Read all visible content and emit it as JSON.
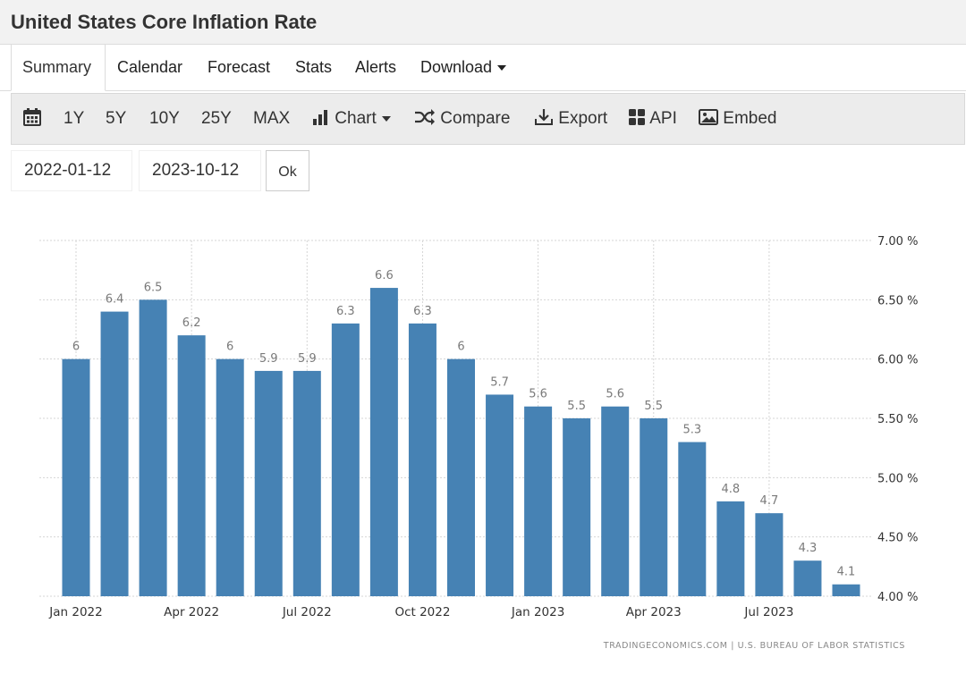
{
  "page": {
    "title": "United States Core Inflation Rate"
  },
  "tabs": [
    {
      "label": "Summary"
    },
    {
      "label": "Calendar"
    },
    {
      "label": "Forecast"
    },
    {
      "label": "Stats"
    },
    {
      "label": "Alerts"
    },
    {
      "label": "Download"
    }
  ],
  "toolbar": {
    "ranges": [
      "1Y",
      "5Y",
      "10Y",
      "25Y",
      "MAX"
    ],
    "chart_label": "Chart",
    "compare_label": "Compare",
    "export_label": "Export",
    "api_label": "API",
    "embed_label": "Embed",
    "icons": [
      "calendar-icon",
      "bar-chart-icon",
      "shuffle-icon",
      "download-icon",
      "grid-icon",
      "image-icon"
    ]
  },
  "date_range": {
    "start": "2022-01-12",
    "end": "2023-10-12",
    "ok_label": "Ok"
  },
  "chart_data": {
    "type": "bar",
    "categories": [
      "2022-01",
      "2022-02",
      "2022-03",
      "2022-04",
      "2022-05",
      "2022-06",
      "2022-07",
      "2022-08",
      "2022-09",
      "2022-10",
      "2022-11",
      "2022-12",
      "2023-01",
      "2023-02",
      "2023-03",
      "2023-04",
      "2023-05",
      "2023-06",
      "2023-07",
      "2023-08",
      "2023-09"
    ],
    "values": [
      6,
      6.4,
      6.5,
      6.2,
      6,
      5.9,
      5.9,
      6.3,
      6.6,
      6.3,
      6,
      5.7,
      5.6,
      5.5,
      5.6,
      5.5,
      5.3,
      4.8,
      4.7,
      4.3,
      4.1
    ],
    "value_labels": [
      "6",
      "6.4",
      "6.5",
      "6.2",
      "6",
      "5.9",
      "5.9",
      "6.3",
      "6.6",
      "6.3",
      "6",
      "5.7",
      "5.6",
      "5.5",
      "5.6",
      "5.5",
      "5.3",
      "4.8",
      "4.7",
      "4.3",
      "4.1"
    ],
    "ylim": [
      4,
      7
    ],
    "y_ticks": [
      {
        "value": 7.0,
        "label": "7.00 %"
      },
      {
        "value": 6.5,
        "label": "6.50 %"
      },
      {
        "value": 6.0,
        "label": "6.00 %"
      },
      {
        "value": 5.5,
        "label": "5.50 %"
      },
      {
        "value": 5.0,
        "label": "5.00 %"
      },
      {
        "value": 4.5,
        "label": "4.50 %"
      },
      {
        "value": 4.0,
        "label": "4.00 %"
      }
    ],
    "x_ticks": [
      {
        "index": 0,
        "label": "Jan 2022"
      },
      {
        "index": 3,
        "label": "Apr 2022"
      },
      {
        "index": 6,
        "label": "Jul 2022"
      },
      {
        "index": 9,
        "label": "Oct 2022"
      },
      {
        "index": 12,
        "label": "Jan 2023"
      },
      {
        "index": 15,
        "label": "Apr 2023"
      },
      {
        "index": 18,
        "label": "Jul 2023"
      }
    ],
    "y_axis_side": "right",
    "grid": true,
    "bar_color": "#4682b4",
    "source": "TRADINGECONOMICS.COM  |  U.S. BUREAU OF LABOR STATISTICS"
  }
}
